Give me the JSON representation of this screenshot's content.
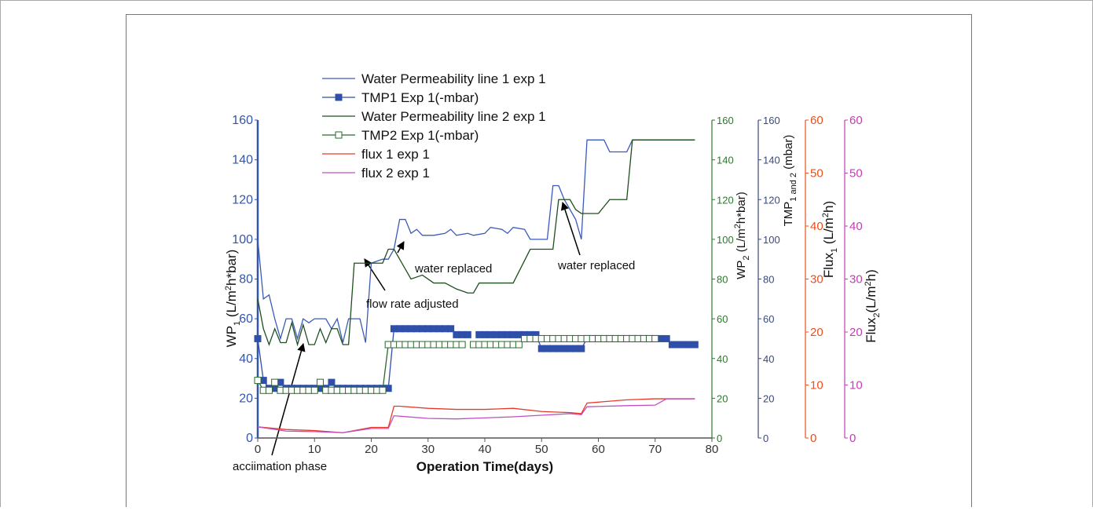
{
  "chart_data": {
    "type": "line",
    "xlabel": "Operation Time(days)",
    "xlim": [
      0,
      80
    ],
    "xticks": [
      0,
      10,
      20,
      30,
      40,
      50,
      60,
      70,
      80
    ],
    "ylim": [
      0,
      160
    ],
    "yticks": [
      0,
      20,
      40,
      60,
      80,
      100,
      120,
      140,
      160
    ],
    "y2lim": [
      0,
      160
    ],
    "y2ticks": [
      0,
      20,
      40,
      60,
      80,
      100,
      120,
      140,
      160
    ],
    "y3lim": [
      0,
      160
    ],
    "y3ticks": [
      0,
      20,
      40,
      60,
      80,
      100,
      120,
      140,
      160
    ],
    "y4lim": [
      0,
      60
    ],
    "y4ticks": [
      0,
      10,
      20,
      30,
      40,
      50,
      60
    ],
    "y5lim": [
      0,
      60
    ],
    "y5ticks": [
      0,
      10,
      20,
      30,
      40,
      50,
      60
    ],
    "ylabel": [
      {
        "text": "WP"
      },
      {
        "text": "1",
        "sub": true
      },
      {
        "text": " (L/m"
      },
      {
        "text": "2",
        "sup": true
      },
      {
        "text": "h*bar)"
      }
    ],
    "y2label": [
      {
        "text": "WP"
      },
      {
        "text": "2",
        "sub": true
      },
      {
        "text": " (L/m"
      },
      {
        "text": "2",
        "sup": true
      },
      {
        "text": "h*bar)"
      }
    ],
    "y3label": [
      {
        "text": "TMP"
      },
      {
        "text": "1 and 2",
        "sub": true
      },
      {
        "text": " (mbar)"
      }
    ],
    "y4label": [
      {
        "text": "Flux"
      },
      {
        "text": "1",
        "sub": true
      },
      {
        "text": " (L/m"
      },
      {
        "text": "2",
        "sup": true
      },
      {
        "text": "h)"
      }
    ],
    "y5label": [
      {
        "text": "Flux"
      },
      {
        "text": "2",
        "sub": true
      },
      {
        "text": "(L/m"
      },
      {
        "text": "2",
        "sup": true
      },
      {
        "text": "h)"
      }
    ],
    "axis_colors": {
      "y": "#3355aa",
      "y2": "#2a7a2a",
      "y3": "#3a4a7a",
      "y4": "#e8501e",
      "y5": "#c040b0"
    },
    "series": [
      {
        "name": "Water Permeability line 1 exp 1",
        "color": "#3a5ab8",
        "axis": "y",
        "marker": "none",
        "x": [
          0,
          1,
          2,
          3,
          4,
          5,
          6,
          7,
          8,
          9,
          10,
          12,
          13,
          14,
          15,
          16,
          18,
          19,
          20,
          22,
          23,
          24,
          25,
          26,
          27,
          28,
          29,
          31,
          33,
          34,
          35,
          37,
          38,
          40,
          41,
          43,
          44,
          45,
          47,
          48,
          51,
          52,
          53,
          54,
          56,
          57,
          58,
          61,
          62,
          65,
          66,
          77
        ],
        "values": [
          100,
          70,
          72,
          60,
          50,
          60,
          60,
          50,
          60,
          58,
          60,
          60,
          55,
          60,
          48,
          60,
          60,
          48,
          88,
          90,
          90,
          95,
          110,
          110,
          103,
          105,
          102,
          102,
          103,
          105,
          102,
          103,
          102,
          103,
          106,
          105,
          103,
          106,
          105,
          100,
          100,
          127,
          127,
          120,
          110,
          100,
          150,
          150,
          144,
          144,
          150,
          150
        ]
      },
      {
        "name": "TMP1 Exp 1(-mbar)",
        "color": "#2f4fa8",
        "axis": "y3",
        "marker": "filled-square",
        "x": [
          0,
          1,
          2,
          3,
          4,
          5,
          6,
          7,
          8,
          9,
          10,
          11,
          12,
          13,
          14,
          15,
          16,
          17,
          18,
          19,
          20,
          21,
          22,
          23,
          24,
          25,
          26,
          27,
          28,
          29,
          30,
          31,
          32,
          33,
          34,
          35,
          36,
          37,
          38,
          39,
          40,
          41,
          42,
          43,
          44,
          45,
          46,
          47,
          48,
          49,
          50,
          51,
          52,
          53,
          54,
          55,
          56,
          57,
          58,
          59,
          60,
          61,
          62,
          63,
          64,
          65,
          66,
          67,
          68,
          69,
          70,
          71,
          72,
          73,
          74,
          75,
          76,
          77
        ],
        "values": [
          50,
          29,
          25,
          25,
          28,
          25,
          25,
          25,
          25,
          25,
          25,
          25,
          25,
          28,
          25,
          25,
          25,
          25,
          25,
          25,
          25,
          25,
          25,
          25,
          55,
          55,
          55,
          55,
          55,
          55,
          55,
          55,
          55,
          55,
          55,
          52,
          52,
          52,
          null,
          52,
          52,
          52,
          52,
          52,
          52,
          52,
          52,
          52,
          52,
          52,
          45,
          45,
          45,
          45,
          45,
          45,
          45,
          45,
          50,
          50,
          50,
          50,
          50,
          50,
          50,
          50,
          50,
          50,
          50,
          50,
          50,
          50,
          50,
          47,
          47,
          47,
          47,
          47
        ]
      },
      {
        "name": "Water Permeability line 2 exp 1",
        "color": "#1e4e1e",
        "axis": "y2",
        "marker": "none",
        "x": [
          0,
          1,
          2,
          3,
          4,
          5,
          6,
          7,
          8,
          9,
          10,
          11,
          12,
          13,
          14,
          15,
          16,
          17,
          22,
          23,
          24,
          25,
          26,
          27,
          29,
          31,
          33,
          35,
          37,
          38,
          39,
          45,
          48,
          52,
          53,
          55,
          56,
          57,
          60,
          62,
          65,
          66,
          77
        ],
        "values": [
          70,
          55,
          47,
          55,
          48,
          48,
          58,
          47,
          57,
          47,
          47,
          55,
          48,
          55,
          55,
          47,
          47,
          88,
          88,
          95,
          95,
          90,
          85,
          80,
          82,
          78,
          78,
          75,
          73,
          73,
          78,
          78,
          95,
          95,
          120,
          120,
          115,
          113,
          113,
          120,
          120,
          150,
          150
        ]
      },
      {
        "name": "TMP2 Exp 1(-mbar)",
        "color": "#2a6a2a",
        "axis": "y3",
        "marker": "open-square",
        "x": [
          0,
          1,
          2,
          3,
          4,
          5,
          6,
          7,
          8,
          9,
          10,
          11,
          12,
          13,
          14,
          15,
          16,
          17,
          18,
          19,
          20,
          21,
          22,
          23,
          24,
          25,
          26,
          27,
          28,
          29,
          30,
          31,
          32,
          33,
          34,
          35,
          36,
          37,
          38,
          39,
          40,
          41,
          42,
          43,
          44,
          45,
          46,
          47,
          48,
          49,
          50,
          51,
          52,
          53,
          54,
          55,
          56,
          57,
          58,
          59,
          60,
          61,
          62,
          63,
          64,
          65,
          66,
          67,
          68,
          69,
          70
        ],
        "values": [
          29,
          24,
          24,
          28,
          24,
          24,
          24,
          24,
          24,
          24,
          24,
          28,
          24,
          24,
          24,
          24,
          24,
          24,
          24,
          24,
          24,
          24,
          24,
          47,
          47,
          47,
          47,
          47,
          47,
          47,
          47,
          47,
          47,
          47,
          47,
          47,
          47,
          null,
          47,
          47,
          47,
          47,
          47,
          47,
          47,
          47,
          47,
          50,
          50,
          50,
          50,
          50,
          50,
          50,
          50,
          50,
          50,
          50,
          50,
          50,
          50,
          50,
          50,
          50,
          50,
          50,
          50,
          50,
          50,
          50,
          50
        ]
      },
      {
        "name": "flux 1 exp 1",
        "color": "#e53a2a",
        "axis": "y4",
        "marker": "none",
        "x": [
          0,
          5,
          10,
          15,
          20,
          23,
          24,
          25,
          30,
          35,
          40,
          45,
          50,
          55,
          57,
          58,
          65,
          70,
          77
        ],
        "values": [
          2.1,
          1.6,
          1.4,
          1.0,
          2.0,
          2.0,
          6.0,
          6.0,
          5.6,
          5.4,
          5.4,
          5.6,
          5.0,
          4.8,
          4.6,
          6.6,
          7.2,
          7.4,
          7.4
        ]
      },
      {
        "name": "flux 2 exp 1",
        "color": "#c050c0",
        "axis": "y5",
        "marker": "none",
        "x": [
          0,
          5,
          10,
          15,
          20,
          23,
          24,
          30,
          35,
          40,
          45,
          50,
          55,
          57,
          58,
          65,
          70,
          72,
          77
        ],
        "values": [
          2.1,
          1.3,
          1.2,
          1.0,
          1.8,
          1.8,
          4.2,
          3.7,
          3.6,
          3.8,
          4.0,
          4.3,
          4.6,
          4.4,
          5.9,
          6.1,
          6.2,
          7.4,
          7.4
        ]
      }
    ],
    "annotations": [
      {
        "text": "water replaced"
      },
      {
        "text": "flow rate adjusted"
      },
      {
        "text": "water replaced"
      },
      {
        "text": "acciimation phase"
      }
    ]
  }
}
